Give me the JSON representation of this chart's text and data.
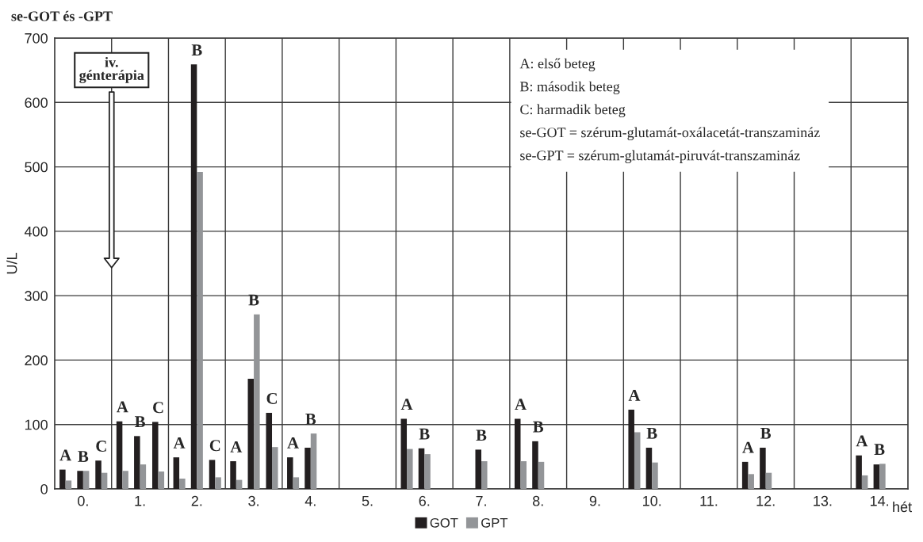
{
  "chart_data": {
    "type": "bar",
    "title": "se-GOT és -GPT",
    "xlabel": "hét",
    "ylabel": "U/L",
    "x": [
      -0.31,
      0,
      0.32,
      0.69,
      1,
      1.32,
      1.69,
      2,
      2.32,
      2.69,
      3,
      3.32,
      3.69,
      4,
      5.69,
      6,
      7,
      7.69,
      8,
      9.69,
      10,
      11.69,
      12,
      13.69,
      14
    ],
    "series": [
      {
        "name": "GOT",
        "color": "#231f20",
        "values": [
          30,
          28,
          44,
          105,
          82,
          104,
          49,
          659,
          45,
          43,
          171,
          118,
          49,
          64,
          109,
          63,
          61,
          109,
          74,
          123,
          64,
          42,
          64,
          52,
          38
        ]
      },
      {
        "name": "GPT",
        "color": "#939598",
        "values": [
          13,
          28,
          25,
          28,
          38,
          27,
          16,
          492,
          18,
          14,
          271,
          65,
          18,
          86,
          62,
          54,
          43,
          43,
          42,
          88,
          41,
          23,
          25,
          21,
          39
        ]
      }
    ],
    "xlim": [
      -0.5,
      14.5
    ],
    "xticks": [
      {
        "value": 0,
        "label": "0."
      },
      {
        "value": 1,
        "label": "1."
      },
      {
        "value": 2,
        "label": "2."
      },
      {
        "value": 3,
        "label": "3."
      },
      {
        "value": 4,
        "label": "4."
      },
      {
        "value": 5,
        "label": "5."
      },
      {
        "value": 6,
        "label": "6."
      },
      {
        "value": 7,
        "label": "7."
      },
      {
        "value": 8,
        "label": "8."
      },
      {
        "value": 9,
        "label": "9."
      },
      {
        "value": 10,
        "label": "10."
      },
      {
        "value": 11,
        "label": "11."
      },
      {
        "value": 12,
        "label": "12."
      },
      {
        "value": 13,
        "label": "13."
      },
      {
        "value": 14,
        "label": "14."
      },
      {
        "value": 0.5,
        "label": null
      },
      {
        "value": 1.5,
        "label": null
      },
      {
        "value": 2.5,
        "label": null
      },
      {
        "value": 3.5,
        "label": null
      },
      {
        "value": 4.5,
        "label": null
      },
      {
        "value": 5.5,
        "label": null
      },
      {
        "value": 6.5,
        "label": null
      },
      {
        "value": 7.5,
        "label": null
      },
      {
        "value": 8.5,
        "label": null
      },
      {
        "value": 9.5,
        "label": null
      },
      {
        "value": 10.5,
        "label": null
      },
      {
        "value": 11.5,
        "label": null
      },
      {
        "value": 12.5,
        "label": null
      },
      {
        "value": 13.5,
        "label": null
      }
    ],
    "ylim": [
      0,
      700
    ],
    "yticks": [
      0,
      100,
      200,
      300,
      400,
      500,
      600,
      700
    ],
    "grid": true,
    "legend": "bottom",
    "annotations": [
      "iv.\ngénterápia",
      {
        "text": "A",
        "x": -0.31,
        "y": 30
      },
      {
        "text": "B",
        "x": 0,
        "y": 28
      },
      {
        "text": "C",
        "x": 0.32,
        "y": 44
      },
      {
        "text": "A",
        "x": 0.69,
        "y": 105
      },
      {
        "text": "B",
        "x": 1,
        "y": 82
      },
      {
        "text": "C",
        "x": 1.32,
        "y": 104
      },
      {
        "text": "A",
        "x": 1.69,
        "y": 49
      },
      {
        "text": "B",
        "x": 2,
        "y": 659
      },
      {
        "text": "C",
        "x": 2.32,
        "y": 45
      },
      {
        "text": "A",
        "x": 2.69,
        "y": 43
      },
      {
        "text": "B",
        "x": 3,
        "y": 271
      },
      {
        "text": "C",
        "x": 3.32,
        "y": 118
      },
      {
        "text": "A",
        "x": 3.69,
        "y": 49
      },
      {
        "text": "B",
        "x": 4,
        "y": 86
      },
      {
        "text": "A",
        "x": 5.69,
        "y": 109
      },
      {
        "text": "B",
        "x": 6,
        "y": 63
      },
      {
        "text": "B",
        "x": 7,
        "y": 61
      },
      {
        "text": "A",
        "x": 7.69,
        "y": 109
      },
      {
        "text": "B",
        "x": 8,
        "y": 74
      },
      {
        "text": "A",
        "x": 9.69,
        "y": 123
      },
      {
        "text": "B",
        "x": 10,
        "y": 64
      },
      {
        "text": "A",
        "x": 11.69,
        "y": 42
      },
      {
        "text": "B",
        "x": 12,
        "y": 64
      },
      {
        "text": "A",
        "x": 13.69,
        "y": 52
      },
      {
        "text": "B",
        "x": 14,
        "y": 39
      },
      "A: első beteg",
      "B: második beteg",
      "C: harmadik beteg",
      "se-GOT = szérum-glutamát-oxálacetát-transzamináz",
      "se-GPT = szérum-glutamát-piruvát-transzamináz"
    ]
  }
}
